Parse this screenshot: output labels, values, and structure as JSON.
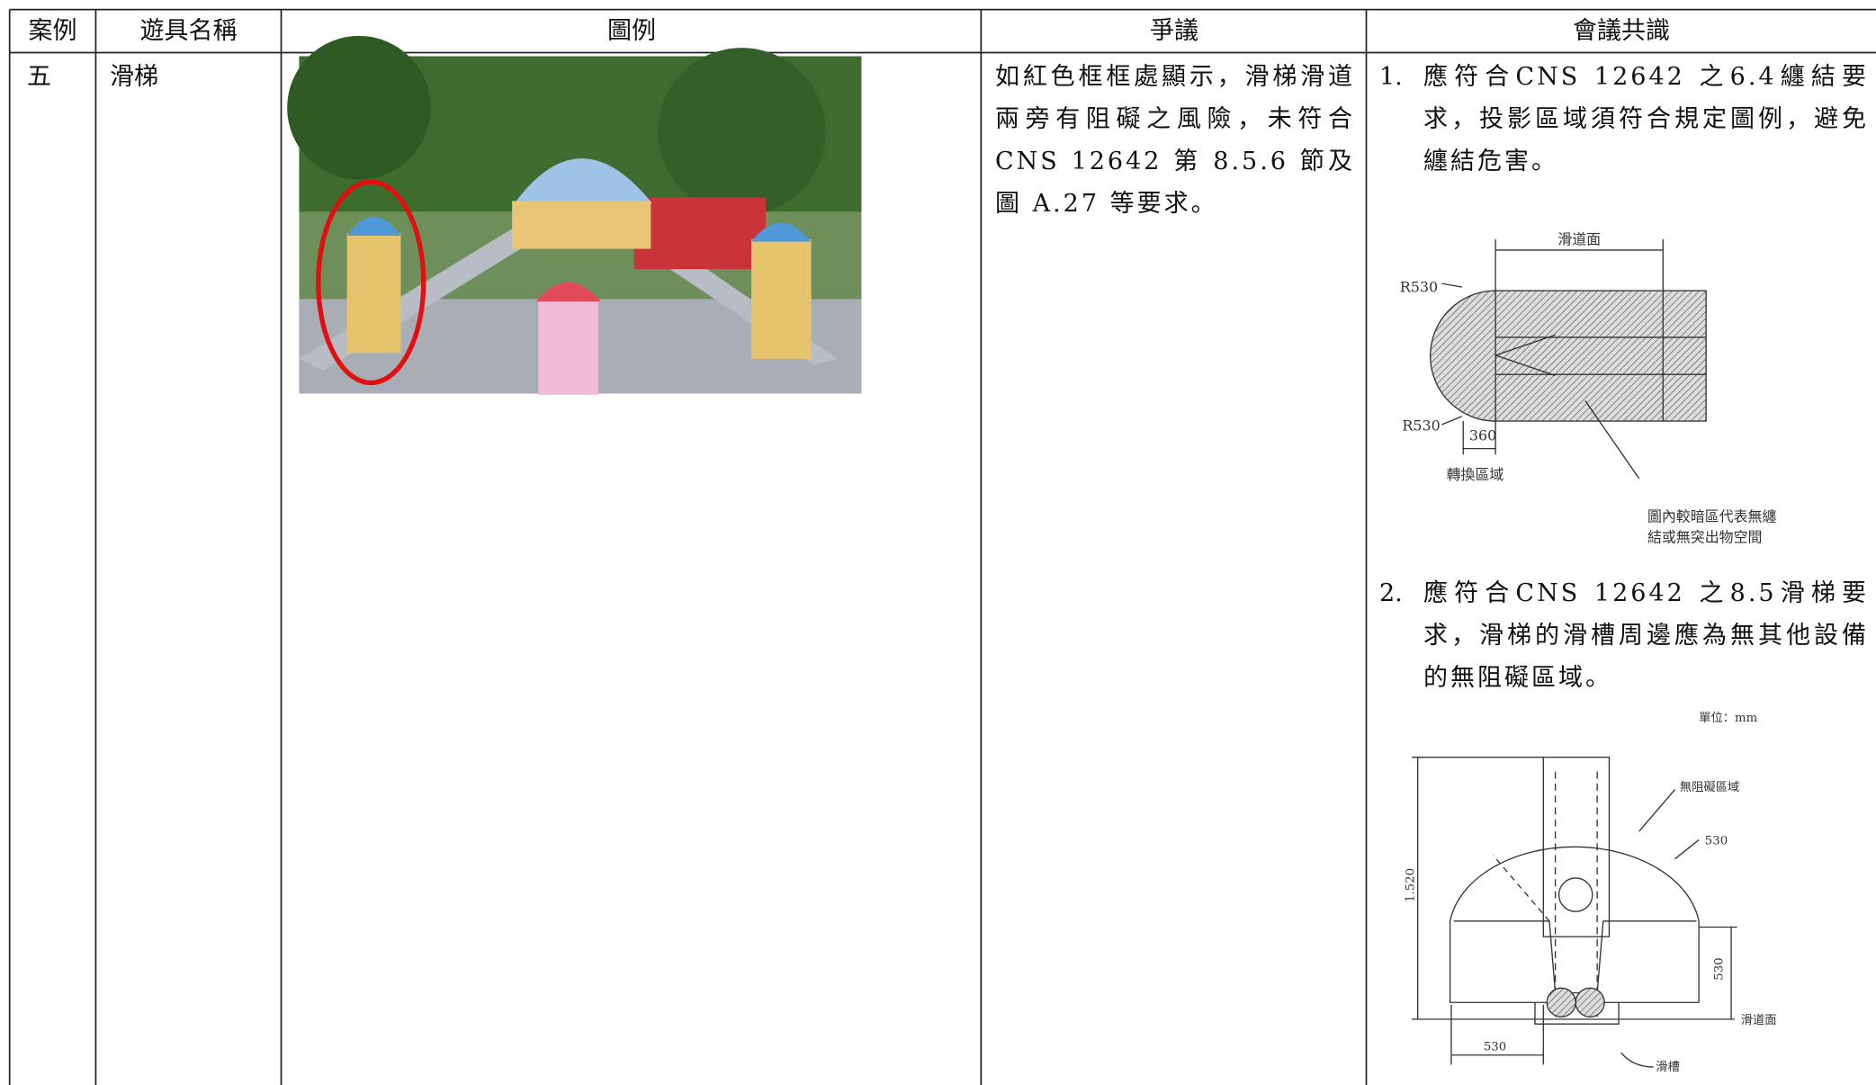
{
  "table": {
    "header": [
      "案例",
      "遊具名稱",
      "圖例",
      "爭議",
      "會議共識"
    ],
    "rows": [
      {
        "case": "五",
        "name": "滑梯",
        "dispute": "如紅色框框處顯示，滑梯滑道兩旁有阻礙之風險，未符合 CNS 12642 第 8.5.6 節及圖 A.27 等要求。",
        "consensus": [
          {
            "number": "1.",
            "text": "應符合CNS 12642 之6.4纏結要求，投影區域須符合規定圖例，避免纏結危害。"
          },
          {
            "number": "2.",
            "text": "應符合CNS 12642 之8.5滑梯要求，滑梯的滑槽周邊應為無其他設備的無阻礙區域。"
          }
        ]
      }
    ]
  },
  "figure_1": {
    "slide_surface": "滑道面",
    "radius_top": "R530",
    "radius_bottom": "R530",
    "transition_width": "360",
    "transition_zone": "轉換區域",
    "caption": [
      "圖內較暗區代表無纏",
      "結或無突出物空間"
    ]
  },
  "figure_2": {
    "unit": "單位：mm",
    "free_zone": "無阻礙區域",
    "arc_radius": "530",
    "height": "1.520",
    "side_height": "530",
    "slide_surface": "滑道面",
    "bottom_width": "530",
    "chute": "滑槽"
  }
}
